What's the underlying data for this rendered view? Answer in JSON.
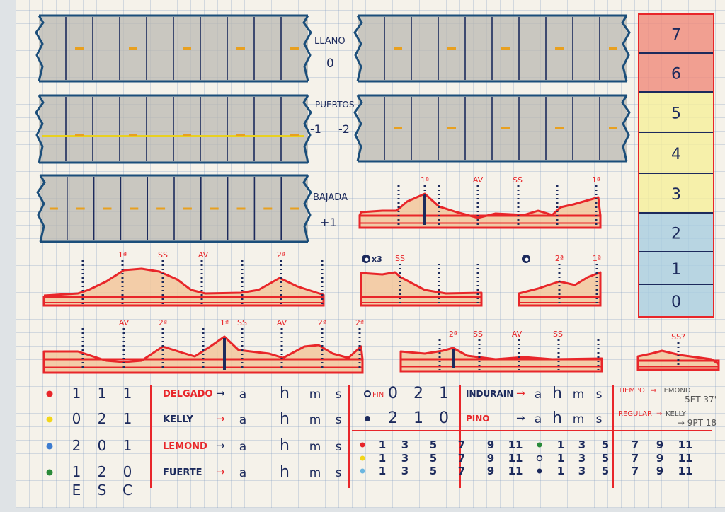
{
  "strip_labels": {
    "llano": "LLANO",
    "llano_value": "0",
    "puertos": "PUERTOS",
    "puertos_value_1": "-1",
    "puertos_value_2": "-2",
    "bajada": "BAJADA",
    "bajada_value": "+1"
  },
  "scale": {
    "values": [
      "7",
      "6",
      "5",
      "4",
      "3",
      "2",
      "1",
      "0"
    ],
    "colors": {
      "high": "#f08a7a",
      "mid": "#f6ef9a",
      "low": "#a9cde0"
    }
  },
  "profiles": [
    {
      "labels": [
        "1ª",
        "AV",
        "SS",
        "1ª"
      ]
    },
    {
      "labels": [
        "1ª",
        "SS",
        "AV",
        "2ª"
      ]
    },
    {
      "icon": "clock-icon",
      "icon_text": "x3",
      "labels": [
        "SS"
      ]
    },
    {
      "icon": "clock-icon",
      "labels": [
        "2ª",
        "1ª"
      ]
    },
    {
      "labels": [
        "AV",
        "2ª",
        "1ª",
        "SS",
        "AV",
        "2ª",
        "2ª"
      ]
    },
    {
      "labels": [
        "2ª",
        "SS",
        "AV",
        "SS"
      ]
    },
    {
      "labels": [
        "SS?"
      ]
    }
  ],
  "teams": {
    "rows": [
      {
        "color": "#e8262a",
        "values": [
          "1",
          "1",
          "1"
        ]
      },
      {
        "color": "#f2d61a",
        "values": [
          "0",
          "2",
          "1"
        ]
      },
      {
        "color": "#3d7cd0",
        "values": [
          "2",
          "0",
          "1"
        ]
      },
      {
        "color": "#2a8a3a",
        "values": [
          "1",
          "2",
          "0"
        ]
      }
    ],
    "footer": [
      "E",
      "S",
      "C"
    ]
  },
  "riders_left": [
    {
      "name": "DELGADO",
      "name_color": "#e8262a",
      "arrow": "→",
      "cols": [
        "a",
        "h",
        "m",
        "s"
      ]
    },
    {
      "name": "KELLY",
      "name_color": "#1c2a5c",
      "arrow": "→",
      "cols": [
        "a",
        "h",
        "m",
        "s"
      ]
    },
    {
      "name": "LEMOND",
      "name_color": "#e8262a",
      "arrow": "→",
      "cols": [
        "a",
        "h",
        "m",
        "s"
      ]
    },
    {
      "name": "FUERTE",
      "name_color": "#1c2a5c",
      "arrow": "→",
      "cols": [
        "a",
        "h",
        "m",
        "s"
      ]
    }
  ],
  "extra_rows": [
    {
      "dot": "open",
      "values": [
        "0",
        "2",
        "1"
      ],
      "overlay": "FIN"
    },
    {
      "dot": "filled",
      "values": [
        "2",
        "1",
        "0"
      ]
    }
  ],
  "riders_right": [
    {
      "name": "INDURAIN",
      "name_color": "#1c2a5c",
      "arrow": "→",
      "cols": [
        "a",
        "h",
        "m",
        "s"
      ]
    },
    {
      "name": "PINO",
      "name_color": "#e8262a",
      "arrow": "→",
      "cols": [
        "a",
        "h",
        "m",
        "s"
      ]
    }
  ],
  "classifications": [
    {
      "label": "TIEMPO",
      "arrow": "⇒",
      "leader": "LEMOND",
      "value": "5ET 37'"
    },
    {
      "label": "REGULAR",
      "arrow": "⇒",
      "leader": "KELLY",
      "value": "→ 9PT 18"
    }
  ],
  "track_rows": [
    {
      "color": "#e8262a",
      "a": [
        "1",
        "3",
        "5",
        "7",
        "9",
        "11"
      ],
      "mid_dot": "#2a8a3a",
      "b": [
        "1",
        "3",
        "5",
        "7",
        "9",
        "11"
      ]
    },
    {
      "color": "#f2d61a",
      "a": [
        "1",
        "3",
        "5",
        "7",
        "9",
        "11"
      ],
      "mid_dot": "open",
      "b": [
        "1",
        "3",
        "5",
        "7",
        "9",
        "11"
      ]
    },
    {
      "color": "#6bb6e0",
      "a": [
        "1",
        "3",
        "5",
        "7",
        "9",
        "11"
      ],
      "mid_dot": "#1c2a5c",
      "b": [
        "1",
        "3",
        "5",
        "7",
        "9",
        "11"
      ]
    }
  ],
  "colors": {
    "ink": "#1c2a5c",
    "red": "#e8262a",
    "terrain": "#f2c79c",
    "road": "#9a9a96",
    "dash": "#e8a020"
  }
}
